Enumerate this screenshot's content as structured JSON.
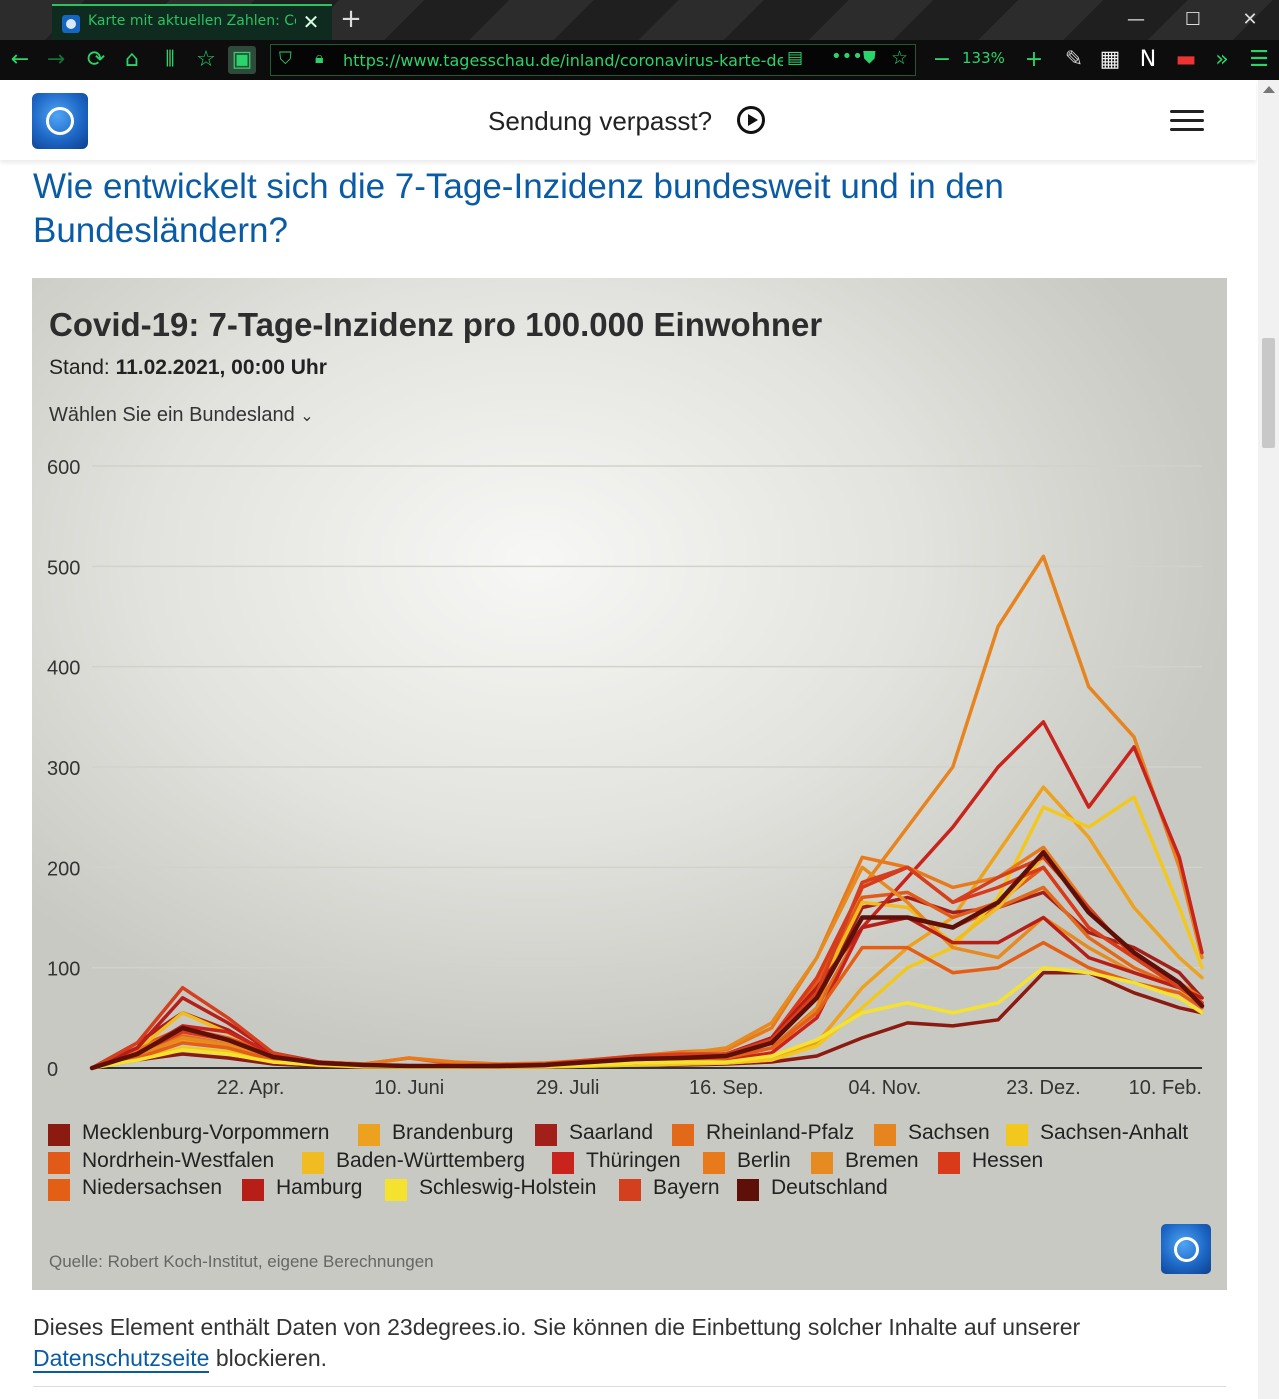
{
  "browser": {
    "tab_title": "Karte mit aktuellen Zahlen: Coro",
    "url": "https://www.tagesschau.de/inland/coronavirus-karte-deu",
    "zoom": "133%"
  },
  "header": {
    "sendung_label": "Sendung verpasst?"
  },
  "article": {
    "headline": "Wie entwickelt sich die 7-Tage-Inzidenz bundesweit und in den Bundesländern?",
    "embed_note_prefix": "Dieses Element enthält Daten von 23degrees.io. Sie können die Einbettung solcher Inhalte auf unserer ",
    "privacy_link": "Datenschutzseite",
    "embed_note_suffix": " blockieren."
  },
  "chart_box": {
    "stand_label": "Stand:",
    "stand_value": "11.02.2021, 00:00 Uhr",
    "select_label": "Wählen Sie ein Bundesland",
    "source": "Quelle: Robert Koch-Institut, eigene Berechnungen"
  },
  "chart_data": {
    "type": "line",
    "title": "Covid-19: 7-Tage-Inzidenz pro 100.000 Einwohner",
    "ylim": [
      0,
      600
    ],
    "yticks": [
      0,
      100,
      200,
      300,
      400,
      500,
      600
    ],
    "xlim": [
      "2020-03-04",
      "2021-02-10"
    ],
    "xticks": [
      {
        "date": "2020-04-22",
        "label": "22. Apr."
      },
      {
        "date": "2020-06-10",
        "label": "10. Juni"
      },
      {
        "date": "2020-07-29",
        "label": "29. Juli"
      },
      {
        "date": "2020-09-16",
        "label": "16. Sep."
      },
      {
        "date": "2020-11-04",
        "label": "04. Nov."
      },
      {
        "date": "2020-12-23",
        "label": "23. Dez."
      },
      {
        "date": "2021-02-10",
        "label": "10. Feb."
      }
    ],
    "grid": true,
    "legend_position": "bottom",
    "x": [
      "2020-03-04",
      "2020-03-18",
      "2020-04-01",
      "2020-04-15",
      "2020-04-29",
      "2020-05-13",
      "2020-05-27",
      "2020-06-10",
      "2020-06-24",
      "2020-07-08",
      "2020-07-22",
      "2020-08-05",
      "2020-08-19",
      "2020-09-02",
      "2020-09-16",
      "2020-09-30",
      "2020-10-14",
      "2020-10-28",
      "2020-11-11",
      "2020-11-25",
      "2020-12-09",
      "2020-12-23",
      "2021-01-06",
      "2021-01-20",
      "2021-02-03",
      "2021-02-10"
    ],
    "series": [
      {
        "name": "Mecklenburg-Vorpommern",
        "color": "#8b1a10",
        "values": [
          0,
          8,
          14,
          10,
          4,
          2,
          1,
          1,
          1,
          1,
          1,
          2,
          3,
          3,
          4,
          6,
          12,
          30,
          45,
          42,
          48,
          95,
          95,
          75,
          60,
          55
        ]
      },
      {
        "name": "Brandenburg",
        "color": "#eda21f",
        "values": [
          0,
          10,
          28,
          20,
          8,
          4,
          2,
          1,
          1,
          1,
          1,
          2,
          3,
          4,
          5,
          8,
          25,
          80,
          120,
          150,
          215,
          280,
          230,
          160,
          110,
          90
        ]
      },
      {
        "name": "Saarland",
        "color": "#a3201a",
        "values": [
          0,
          25,
          55,
          38,
          12,
          4,
          2,
          1,
          1,
          2,
          2,
          5,
          8,
          10,
          12,
          25,
          70,
          160,
          170,
          155,
          160,
          175,
          135,
          120,
          95,
          70
        ]
      },
      {
        "name": "Rheinland-Pfalz",
        "color": "#e2691a",
        "values": [
          0,
          15,
          32,
          24,
          10,
          4,
          2,
          1,
          1,
          2,
          2,
          5,
          8,
          9,
          10,
          20,
          60,
          140,
          150,
          140,
          160,
          180,
          130,
          100,
          80,
          65
        ]
      },
      {
        "name": "Sachsen",
        "color": "#e68420",
        "values": [
          0,
          12,
          30,
          24,
          10,
          4,
          2,
          1,
          1,
          1,
          2,
          4,
          6,
          7,
          8,
          15,
          60,
          180,
          240,
          300,
          440,
          510,
          380,
          330,
          200,
          110
        ]
      },
      {
        "name": "Sachsen-Anhalt",
        "color": "#f2c81e",
        "values": [
          0,
          8,
          20,
          16,
          6,
          3,
          1,
          1,
          1,
          1,
          1,
          2,
          3,
          4,
          5,
          8,
          22,
          60,
          100,
          120,
          170,
          260,
          240,
          270,
          160,
          100
        ]
      },
      {
        "name": "Nordrhein-Westfalen",
        "color": "#e25a18",
        "values": [
          0,
          20,
          40,
          30,
          14,
          6,
          4,
          10,
          4,
          3,
          4,
          7,
          10,
          12,
          14,
          30,
          85,
          170,
          175,
          150,
          165,
          200,
          140,
          110,
          85,
          65
        ]
      },
      {
        "name": "Baden-Württemberg",
        "color": "#f0bc22",
        "values": [
          0,
          18,
          55,
          35,
          15,
          5,
          3,
          2,
          2,
          3,
          3,
          6,
          9,
          10,
          12,
          25,
          75,
          165,
          160,
          125,
          160,
          210,
          160,
          110,
          80,
          60
        ]
      },
      {
        "name": "Thüringen",
        "color": "#c8231c",
        "values": [
          0,
          15,
          42,
          36,
          14,
          6,
          3,
          2,
          2,
          2,
          2,
          4,
          5,
          7,
          8,
          15,
          50,
          140,
          190,
          240,
          300,
          345,
          260,
          320,
          210,
          115
        ]
      },
      {
        "name": "Berlin",
        "color": "#e87a1c",
        "values": [
          0,
          18,
          38,
          28,
          12,
          6,
          4,
          10,
          6,
          4,
          5,
          8,
          12,
          16,
          18,
          40,
          110,
          210,
          200,
          180,
          190,
          220,
          160,
          110,
          85,
          70
        ]
      },
      {
        "name": "Bremen",
        "color": "#e68a22",
        "values": [
          0,
          12,
          30,
          22,
          10,
          4,
          2,
          2,
          2,
          3,
          3,
          6,
          10,
          14,
          20,
          45,
          110,
          200,
          165,
          120,
          110,
          150,
          120,
          95,
          80,
          70
        ]
      },
      {
        "name": "Hessen",
        "color": "#d83a1a",
        "values": [
          0,
          15,
          36,
          28,
          12,
          6,
          3,
          2,
          2,
          3,
          3,
          6,
          10,
          12,
          14,
          30,
          90,
          180,
          200,
          165,
          180,
          200,
          140,
          110,
          85,
          65
        ]
      },
      {
        "name": "Niedersachsen",
        "color": "#e45f16",
        "values": [
          0,
          10,
          25,
          20,
          8,
          4,
          2,
          2,
          2,
          2,
          3,
          5,
          7,
          8,
          10,
          20,
          55,
          120,
          120,
          95,
          100,
          125,
          100,
          85,
          75,
          60
        ]
      },
      {
        "name": "Hamburg",
        "color": "#b81e18",
        "values": [
          0,
          20,
          70,
          45,
          15,
          6,
          3,
          2,
          2,
          3,
          3,
          7,
          10,
          12,
          14,
          30,
          80,
          140,
          150,
          125,
          125,
          150,
          110,
          95,
          80,
          70
        ]
      },
      {
        "name": "Schleswig-Holstein",
        "color": "#f5e22e",
        "values": [
          0,
          8,
          18,
          14,
          6,
          3,
          2,
          1,
          1,
          2,
          2,
          3,
          5,
          6,
          6,
          12,
          28,
          55,
          65,
          55,
          65,
          100,
          95,
          85,
          70,
          55
        ]
      },
      {
        "name": "Bayern",
        "color": "#d43f1e",
        "values": [
          0,
          25,
          80,
          50,
          15,
          5,
          3,
          2,
          2,
          3,
          4,
          8,
          12,
          14,
          14,
          28,
          75,
          185,
          200,
          165,
          190,
          210,
          160,
          110,
          80,
          65
        ]
      },
      {
        "name": "Deutschland",
        "color": "#5e0f08",
        "values": [
          0,
          14,
          40,
          28,
          11,
          5,
          3,
          2,
          2,
          2,
          3,
          6,
          9,
          10,
          12,
          25,
          70,
          150,
          150,
          140,
          165,
          215,
          155,
          115,
          85,
          62
        ]
      }
    ]
  }
}
